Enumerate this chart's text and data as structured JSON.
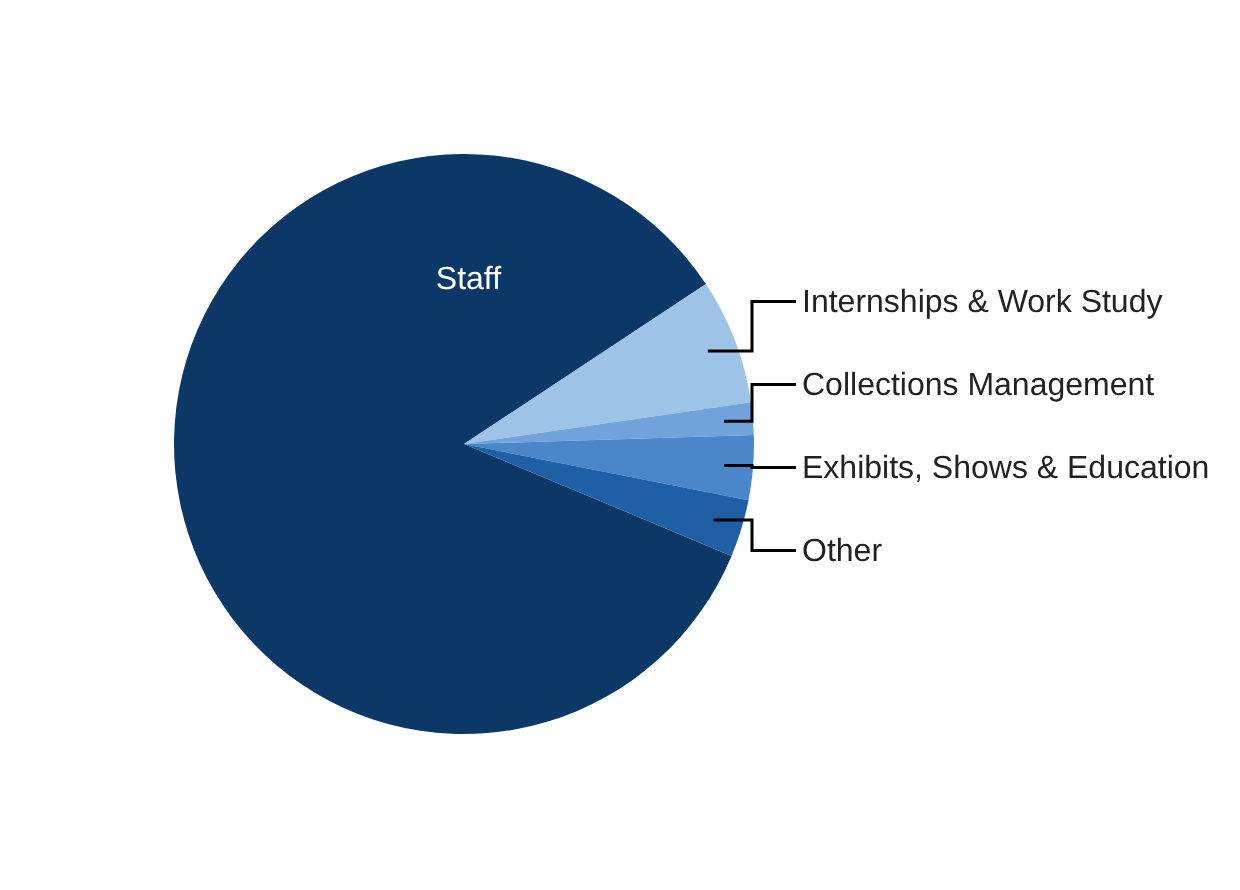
{
  "chart_data": {
    "type": "pie",
    "categories": [
      "Staff",
      "Internships & Work Study",
      "Collections Management",
      "Exhibits, Shows & Education",
      "Other"
    ],
    "values": [
      84.4,
      7.0,
      1.8,
      3.6,
      3.2
    ],
    "colors": [
      "#0b3866",
      "#9dc3e6",
      "#6fa3da",
      "#4a86c8",
      "#1f5fa6"
    ]
  }
}
